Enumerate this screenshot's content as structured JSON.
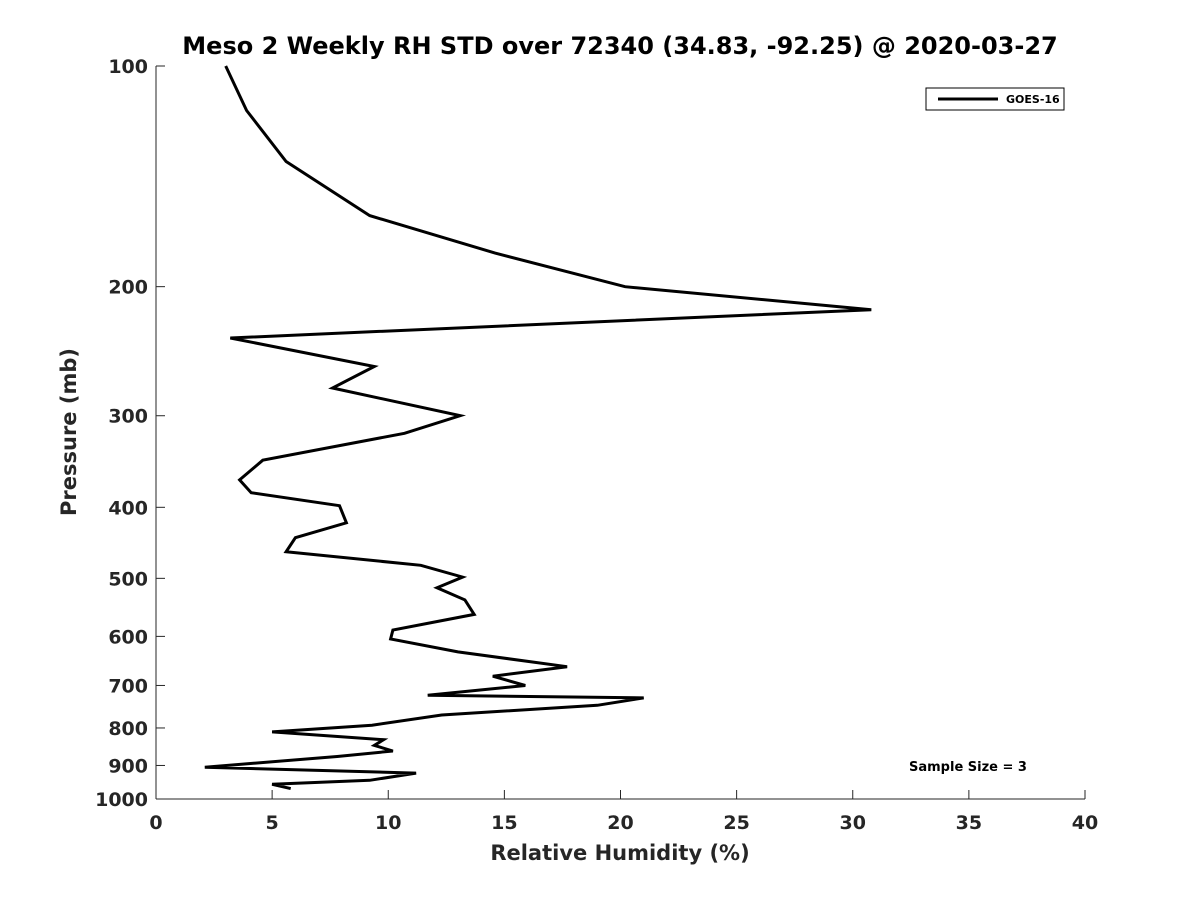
{
  "chart_data": {
    "type": "line",
    "title": "Meso 2 Weekly RH STD over 72340 (34.83, -92.25) @ 2020-03-27",
    "xlabel": "Relative Humidity (%)",
    "ylabel": "Pressure (mb)",
    "xlim": [
      0,
      40
    ],
    "ylim": [
      100,
      1000
    ],
    "y_scale": "log",
    "y_reversed": true,
    "grid": false,
    "legend_position": "top-right",
    "x_ticks": [
      0,
      5,
      10,
      15,
      20,
      25,
      30,
      35,
      40
    ],
    "y_ticks": [
      100,
      200,
      300,
      400,
      500,
      600,
      700,
      800,
      900,
      1000
    ],
    "annotation": "Sample Size = 3",
    "series": [
      {
        "name": "GOES-16",
        "color": "#000000",
        "x": [
          3.0,
          3.9,
          5.6,
          9.2,
          14.6,
          20.2,
          30.8,
          3.2,
          9.4,
          7.6,
          13.1,
          10.7,
          4.6,
          3.6,
          4.1,
          7.9,
          8.2,
          6.0,
          5.6,
          11.4,
          13.2,
          12.1,
          13.3,
          13.7,
          10.2,
          10.1,
          13.0,
          17.7,
          14.5,
          15.9,
          11.7,
          21.0,
          19.0,
          12.3,
          9.3,
          5.0,
          9.8,
          9.4,
          10.2,
          7.8,
          2.1,
          11.2,
          9.2,
          5.0,
          5.8
        ],
        "y": [
          100,
          115,
          135,
          160,
          180,
          200,
          215,
          235,
          257,
          275,
          300,
          317,
          345,
          367,
          382,
          398,
          420,
          440,
          460,
          480,
          498,
          515,
          535,
          560,
          588,
          605,
          630,
          660,
          680,
          700,
          722,
          728,
          745,
          768,
          793,
          810,
          830,
          845,
          860,
          875,
          905,
          922,
          943,
          955,
          968
        ]
      }
    ]
  }
}
